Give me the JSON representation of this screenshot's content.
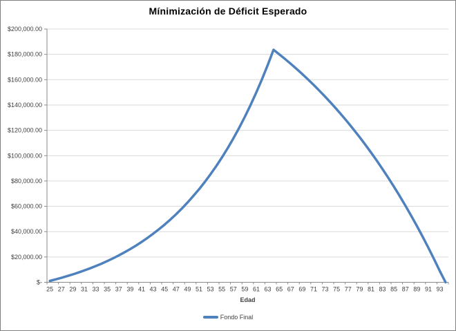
{
  "title": "Mínimización de Déficit Esperado",
  "legend": {
    "items": [
      {
        "label": "Fondo Final",
        "color": "#4f81bd"
      }
    ]
  },
  "chart_data": {
    "type": "line",
    "title": "Mínimización de Déficit Esperado",
    "xlabel": "Edad",
    "ylabel": "",
    "x": [
      25,
      26,
      27,
      28,
      29,
      30,
      31,
      32,
      33,
      34,
      35,
      36,
      37,
      38,
      39,
      40,
      41,
      42,
      43,
      44,
      45,
      46,
      47,
      48,
      49,
      50,
      51,
      52,
      53,
      54,
      55,
      56,
      57,
      58,
      59,
      60,
      61,
      62,
      63,
      64,
      65,
      66,
      67,
      68,
      69,
      70,
      71,
      72,
      73,
      74,
      75,
      76,
      77,
      78,
      79,
      80,
      81,
      82,
      83,
      84,
      85,
      86,
      87,
      88,
      89,
      90,
      91,
      92,
      93,
      94
    ],
    "x_label_interval": 2,
    "x_tick_labels": [
      "25",
      "27",
      "29",
      "31",
      "33",
      "35",
      "37",
      "39",
      "41",
      "43",
      "45",
      "47",
      "49",
      "51",
      "53",
      "55",
      "57",
      "59",
      "61",
      "63",
      "65",
      "67",
      "69",
      "71",
      "73",
      "75",
      "77",
      "79",
      "81",
      "83",
      "85",
      "87",
      "89",
      "91",
      "93"
    ],
    "series": [
      {
        "name": "Fondo Final",
        "color": "#4f81bd",
        "values": [
          1100,
          2269,
          3512,
          4834,
          6238,
          7731,
          9318,
          11005,
          12799,
          14705,
          16731,
          18885,
          21175,
          23609,
          26197,
          28946,
          31870,
          34978,
          38282,
          41794,
          45527,
          49494,
          53713,
          58197,
          62964,
          68031,
          73416,
          79142,
          85227,
          91696,
          98573,
          105884,
          113654,
          121915,
          130695,
          140029,
          149951,
          160498,
          171709,
          183626,
          180053,
          176355,
          172527,
          168565,
          164465,
          160221,
          155829,
          151283,
          146578,
          141708,
          136668,
          131451,
          126052,
          120464,
          114680,
          108694,
          102498,
          96086,
          89449,
          82580,
          75470,
          68111,
          60495,
          52612,
          44453,
          36009,
          27269,
          18223,
          8861,
          0
        ]
      }
    ],
    "ylim": [
      0,
      200000
    ],
    "y_ticks": [
      0,
      20000,
      40000,
      60000,
      80000,
      100000,
      120000,
      140000,
      160000,
      180000,
      200000
    ],
    "y_tick_labels": [
      "$-",
      "$20,000.00",
      "$40,000.00",
      "$60,000.00",
      "$80,000.00",
      "$100,000.00",
      "$120,000.00",
      "$140,000.00",
      "$160,000.00",
      "$180,000.00",
      "$200,000.00"
    ],
    "grid": true,
    "legend_position": "bottom",
    "colors": {
      "gridline": "#d9d9d9",
      "axis": "#898989",
      "tick_label": "#3f3f3f",
      "title": "#000000"
    }
  }
}
